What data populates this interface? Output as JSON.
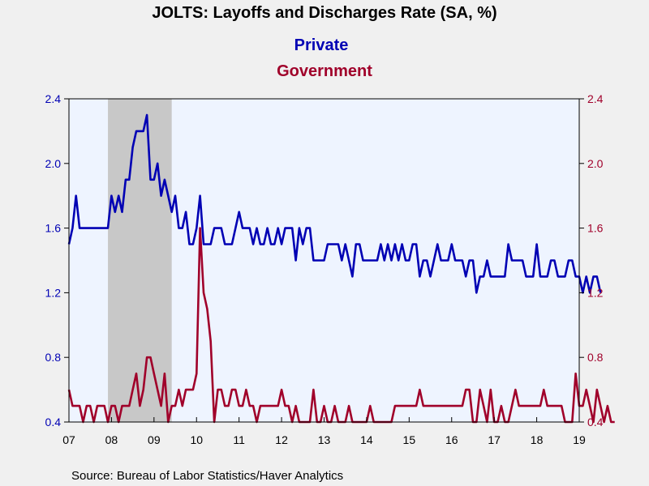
{
  "chart_data": {
    "type": "line",
    "title": "JOLTS: Layoffs and Discharges Rate (SA, %)",
    "source": "Source:  Bureau of Labor Statistics/Haver Analytics",
    "x_range": [
      "2007-01",
      "2019-01"
    ],
    "x_tick_labels": [
      "07",
      "08",
      "09",
      "10",
      "11",
      "12",
      "13",
      "14",
      "15",
      "16",
      "17",
      "18",
      "19"
    ],
    "ylim_left": [
      0.4,
      2.4
    ],
    "ylim_right": [
      0.4,
      2.4
    ],
    "y_tick_labels": [
      "0.4",
      "0.8",
      "1.2",
      "1.6",
      "2.0",
      "2.4"
    ],
    "grid": false,
    "legend": "top-center (series names printed as subtitles)",
    "recession_shading": {
      "start": "2007-12",
      "end": "2009-06",
      "color": "#c8c8c8"
    },
    "plot_background": "#eef4ff",
    "series": [
      {
        "name": "Private",
        "axis": "left",
        "color": "#0000b4",
        "start": "2007-01",
        "frequency": "monthly",
        "values": [
          1.5,
          1.6,
          1.8,
          1.6,
          1.6,
          1.6,
          1.6,
          1.6,
          1.6,
          1.6,
          1.6,
          1.6,
          1.8,
          1.7,
          1.8,
          1.7,
          1.9,
          1.9,
          2.1,
          2.2,
          2.2,
          2.2,
          2.3,
          1.9,
          1.9,
          2.0,
          1.8,
          1.9,
          1.8,
          1.7,
          1.8,
          1.6,
          1.6,
          1.7,
          1.5,
          1.5,
          1.6,
          1.8,
          1.5,
          1.5,
          1.5,
          1.6,
          1.6,
          1.6,
          1.5,
          1.5,
          1.5,
          1.6,
          1.7,
          1.6,
          1.6,
          1.6,
          1.5,
          1.6,
          1.5,
          1.5,
          1.6,
          1.5,
          1.5,
          1.6,
          1.5,
          1.6,
          1.6,
          1.6,
          1.4,
          1.6,
          1.5,
          1.6,
          1.6,
          1.4,
          1.4,
          1.4,
          1.4,
          1.5,
          1.5,
          1.5,
          1.5,
          1.4,
          1.5,
          1.4,
          1.3,
          1.5,
          1.5,
          1.4,
          1.4,
          1.4,
          1.4,
          1.4,
          1.5,
          1.4,
          1.5,
          1.4,
          1.5,
          1.4,
          1.5,
          1.4,
          1.4,
          1.5,
          1.5,
          1.3,
          1.4,
          1.4,
          1.3,
          1.4,
          1.5,
          1.4,
          1.4,
          1.4,
          1.5,
          1.4,
          1.4,
          1.4,
          1.3,
          1.4,
          1.4,
          1.2,
          1.3,
          1.3,
          1.4,
          1.3,
          1.3,
          1.3,
          1.3,
          1.3,
          1.5,
          1.4,
          1.4,
          1.4,
          1.4,
          1.3,
          1.3,
          1.3,
          1.5,
          1.3,
          1.3,
          1.3,
          1.4,
          1.4,
          1.3,
          1.3,
          1.3,
          1.4,
          1.4,
          1.3,
          1.3,
          1.2,
          1.3,
          1.2,
          1.3,
          1.3,
          1.2
        ]
      },
      {
        "name": "Government",
        "axis": "right",
        "color": "#a0002a",
        "start": "2007-01",
        "frequency": "monthly",
        "values": [
          0.6,
          0.5,
          0.5,
          0.5,
          0.4,
          0.5,
          0.5,
          0.4,
          0.5,
          0.5,
          0.5,
          0.4,
          0.5,
          0.5,
          0.4,
          0.5,
          0.5,
          0.5,
          0.6,
          0.7,
          0.5,
          0.6,
          0.8,
          0.8,
          0.7,
          0.6,
          0.5,
          0.7,
          0.4,
          0.5,
          0.5,
          0.6,
          0.5,
          0.6,
          0.6,
          0.6,
          0.7,
          1.6,
          1.2,
          1.1,
          0.9,
          0.4,
          0.6,
          0.6,
          0.5,
          0.5,
          0.6,
          0.6,
          0.5,
          0.5,
          0.6,
          0.5,
          0.5,
          0.4,
          0.5,
          0.5,
          0.5,
          0.5,
          0.5,
          0.5,
          0.6,
          0.5,
          0.5,
          0.4,
          0.5,
          0.4,
          0.4,
          0.4,
          0.4,
          0.6,
          0.4,
          0.4,
          0.5,
          0.4,
          0.4,
          0.5,
          0.4,
          0.4,
          0.4,
          0.5,
          0.4,
          0.4,
          0.4,
          0.4,
          0.4,
          0.5,
          0.4,
          0.4,
          0.4,
          0.4,
          0.4,
          0.4,
          0.5,
          0.5,
          0.5,
          0.5,
          0.5,
          0.5,
          0.5,
          0.6,
          0.5,
          0.5,
          0.5,
          0.5,
          0.5,
          0.5,
          0.5,
          0.5,
          0.5,
          0.5,
          0.5,
          0.5,
          0.6,
          0.6,
          0.4,
          0.4,
          0.6,
          0.5,
          0.4,
          0.6,
          0.4,
          0.4,
          0.5,
          0.4,
          0.4,
          0.5,
          0.6,
          0.5,
          0.5,
          0.5,
          0.5,
          0.5,
          0.5,
          0.5,
          0.6,
          0.5,
          0.5,
          0.5,
          0.5,
          0.5,
          0.4,
          0.4,
          0.4,
          0.7,
          0.5,
          0.5,
          0.6,
          0.5,
          0.4,
          0.6,
          0.5,
          0.4,
          0.5,
          0.4,
          0.4
        ]
      }
    ]
  }
}
